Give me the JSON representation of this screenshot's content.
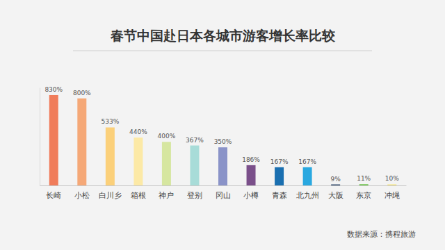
{
  "chart_data": {
    "type": "bar",
    "title": "春节中国赴日本各城市游客增长率比较",
    "source": "数据来源：携程旅游",
    "categories": [
      "长崎",
      "小松",
      "白川乡",
      "箱根",
      "神户",
      "登别",
      "冈山",
      "小樽",
      "青森",
      "北九州",
      "大阪",
      "东京",
      "冲绳"
    ],
    "values": [
      830,
      800,
      533,
      440,
      400,
      367,
      350,
      186,
      167,
      167,
      9,
      11,
      10
    ],
    "value_labels": [
      "830%",
      "800%",
      "533%",
      "440%",
      "400%",
      "367%",
      "350%",
      "186%",
      "167%",
      "167%",
      "9%",
      "11%",
      "10%"
    ],
    "colors": [
      "#f07c5a",
      "#f5a877",
      "#fbd07a",
      "#fce9a6",
      "#d6e6a0",
      "#a8dcd8",
      "#8a93c8",
      "#7a4f8a",
      "#1a6fb0",
      "#29a8e0",
      "#1f3a5f",
      "#6cc24a",
      "#f5e68a"
    ],
    "ylim": [
      0,
      900
    ],
    "data_labels": true,
    "tick_labels": "x"
  }
}
